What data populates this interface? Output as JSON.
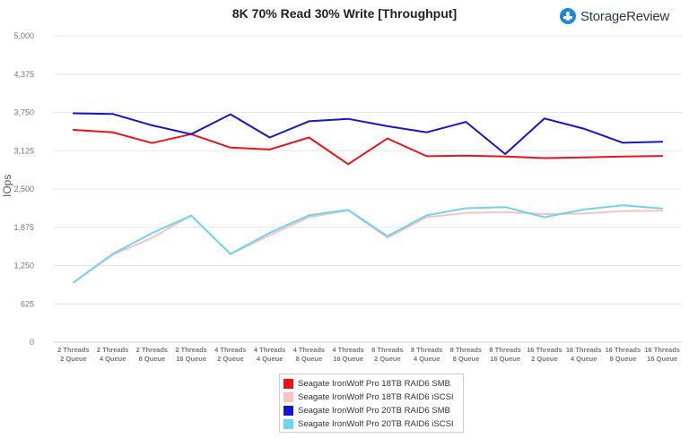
{
  "header": {
    "brand_name": "StorageReview",
    "brand_icon": "storagereview-logo-icon"
  },
  "colors": {
    "brand": "#1e88d8",
    "grid": "#e6e6e6",
    "axis_text": "#777777"
  },
  "chart_data": {
    "type": "line",
    "title": "8K 70% Read 30% Write [Throughput]",
    "xlabel": "",
    "ylabel": "IOps",
    "ylim": [
      0,
      5000
    ],
    "yticks": [
      0,
      625,
      1250,
      1875,
      2500,
      3125,
      3750,
      4375,
      5000
    ],
    "ytick_labels": [
      "0",
      "625",
      "1,250",
      "1,875",
      "2,500",
      "3,125",
      "3,750",
      "4,375",
      "5,000"
    ],
    "grid": true,
    "legend_position": "bottom",
    "categories": [
      [
        "2 Threads",
        "2 Queue"
      ],
      [
        "2 Threads",
        "4 Queue"
      ],
      [
        "2 Threads",
        "8 Queue"
      ],
      [
        "2 Threads",
        "16 Queue"
      ],
      [
        "4 Threads",
        "2 Queue"
      ],
      [
        "4 Threads",
        "4 Queue"
      ],
      [
        "4 Threads",
        "8 Queue"
      ],
      [
        "4 Threads",
        "16 Queue"
      ],
      [
        "8 Threads",
        "2 Queue"
      ],
      [
        "8 Threads",
        "4 Queue"
      ],
      [
        "8 Threads",
        "8 Queue"
      ],
      [
        "8 Threads",
        "16 Queue"
      ],
      [
        "16 Threads",
        "2 Queue"
      ],
      [
        "16 Threads",
        "4 Queue"
      ],
      [
        "16 Threads",
        "8 Queue"
      ],
      [
        "16 Threads",
        "16 Queue"
      ]
    ],
    "series": [
      {
        "name": "Seagate IronWolf Pro 18TB RAID6 SMB",
        "color": "#e8141b",
        "values": [
          3465,
          3425,
          3250,
          3395,
          3175,
          3145,
          3340,
          2905,
          3325,
          3035,
          3045,
          3030,
          3005,
          3015,
          3030,
          3040
        ]
      },
      {
        "name": "Seagate IronWolf Pro 18TB RAID6 iSCSI",
        "color": "#f9c3c3",
        "values": [
          975,
          1425,
          1700,
          2070,
          1435,
          1745,
          2040,
          2150,
          1705,
          2040,
          2110,
          2125,
          2090,
          2100,
          2140,
          2145
        ]
      },
      {
        "name": "Seagate IronWolf Pro 20TB RAID6 SMB",
        "color": "#1616c8",
        "values": [
          3735,
          3725,
          3540,
          3395,
          3720,
          3340,
          3605,
          3645,
          3525,
          3425,
          3595,
          3070,
          3650,
          3485,
          3255,
          3270
        ]
      },
      {
        "name": "Seagate IronWolf Pro 20TB RAID6 iSCSI",
        "color": "#6ed3f0",
        "values": [
          975,
          1440,
          1780,
          2065,
          1440,
          1785,
          2070,
          2160,
          1730,
          2070,
          2185,
          2205,
          2040,
          2165,
          2235,
          2180
        ]
      }
    ]
  }
}
